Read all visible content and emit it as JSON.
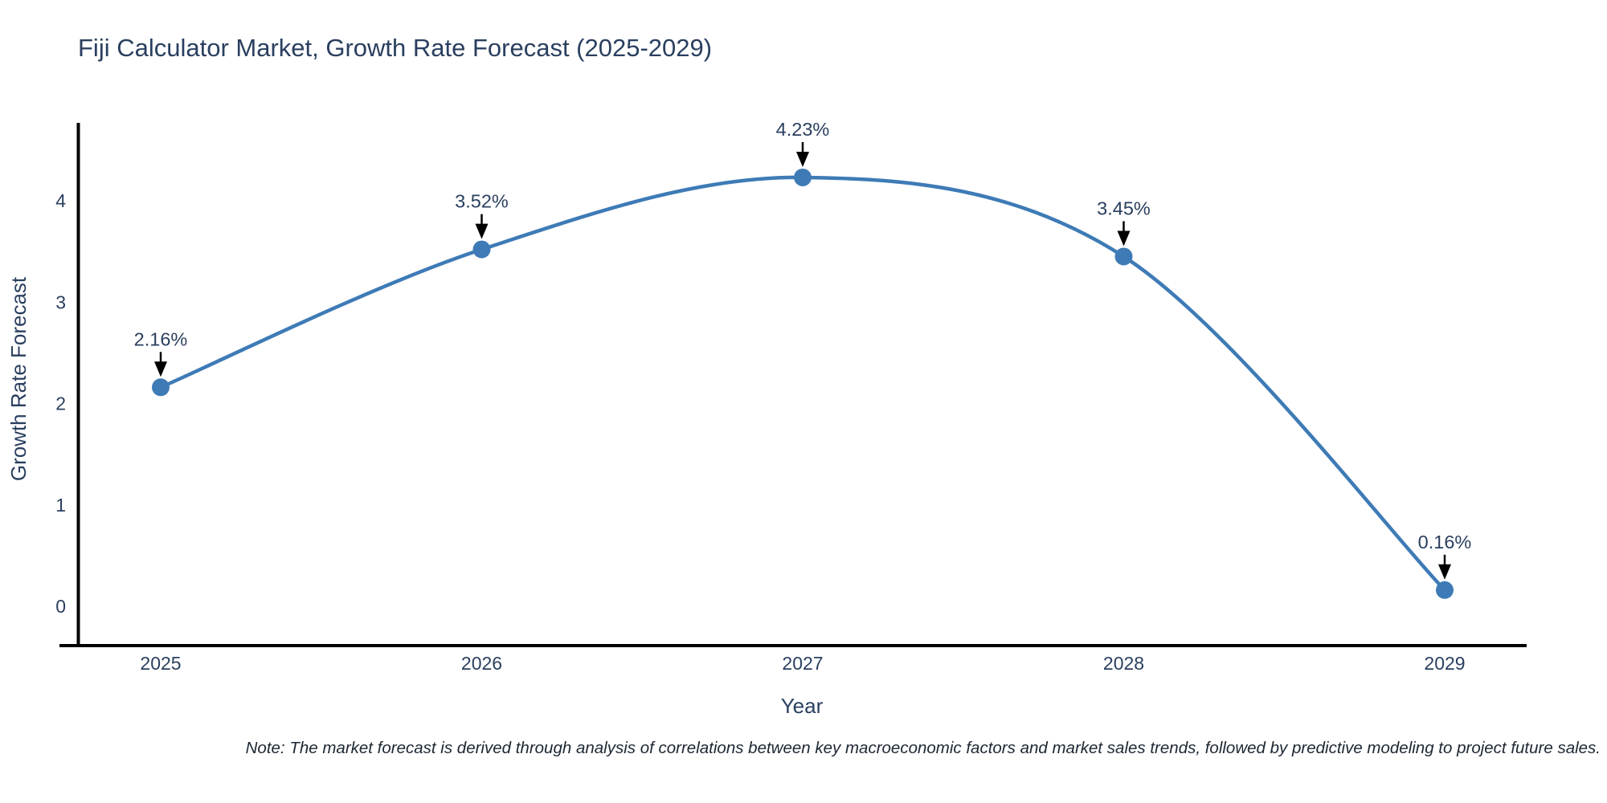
{
  "title": "Fiji Calculator Market, Growth Rate Forecast (2025-2029)",
  "note": "Note: The market forecast is derived through analysis of correlations between key macroeconomic factors and market sales trends, followed by predictive modeling to project future sales.",
  "chart_data": {
    "type": "line",
    "title": "Fiji Calculator Market, Growth Rate Forecast (2025-2029)",
    "xlabel": "Year",
    "ylabel": "Growth Rate Forecast",
    "categories": [
      "2025",
      "2026",
      "2027",
      "2028",
      "2029"
    ],
    "values": [
      2.16,
      3.52,
      4.23,
      3.45,
      0.16
    ],
    "point_labels": [
      "2.16%",
      "3.52%",
      "4.23%",
      "3.45%",
      "0.16%"
    ],
    "yticks": [
      0,
      1,
      2,
      3,
      4
    ],
    "ylim": [
      -0.4,
      4.75
    ],
    "line_shape": "spline",
    "grid": false,
    "legend_position": "none",
    "colors": {
      "line": "#3e7bb6",
      "marker": "#3e7bb6",
      "axis": "#000000",
      "text": "#2a3f5f",
      "arrow": "#000000"
    }
  }
}
